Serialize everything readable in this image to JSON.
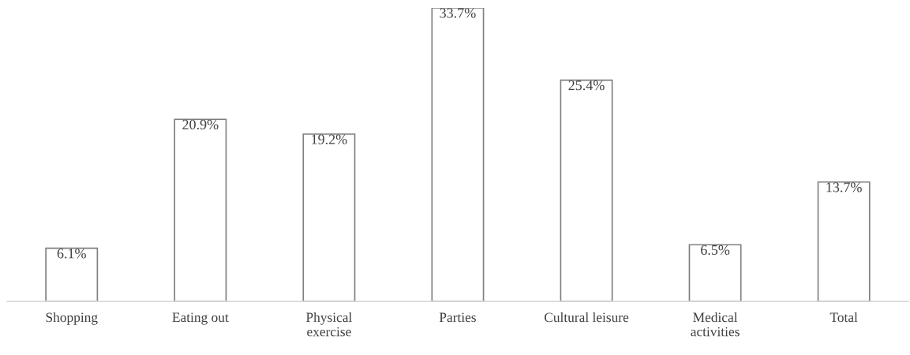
{
  "chart_data": {
    "type": "bar",
    "categories": [
      "Shopping",
      "Eating out",
      "Physical\nexercise",
      "Parties",
      "Cultural leisure",
      "Medical\nactivities",
      "Total"
    ],
    "values": [
      6.1,
      20.9,
      19.2,
      33.7,
      25.4,
      6.5,
      13.7
    ],
    "value_labels": [
      "6.1%",
      "20.9%",
      "19.2%",
      "33.7%",
      "25.4%",
      "6.5%",
      "13.7%"
    ],
    "color": "#7f7f7f",
    "grid": false,
    "legend": false,
    "tick_labels": "x"
  }
}
